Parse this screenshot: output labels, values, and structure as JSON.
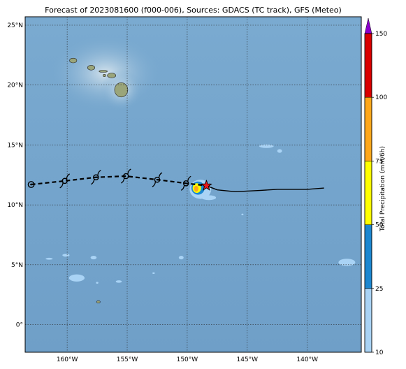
{
  "title": "Forecast of 2023081600 (f000-006), Sources: GDACS (TC track), GFS (Meteo)",
  "map": {
    "lon_range": [
      -163.5,
      -135.5
    ],
    "lat_range": [
      -2.3,
      25.7
    ],
    "lat_ticks": [
      {
        "value": 25,
        "label": "25°N"
      },
      {
        "value": 20,
        "label": "20°N"
      },
      {
        "value": 15,
        "label": "15°N"
      },
      {
        "value": 10,
        "label": "10°N"
      },
      {
        "value": 5,
        "label": "5°N"
      },
      {
        "value": 0,
        "label": "0°"
      }
    ],
    "lon_ticks": [
      {
        "value": -160,
        "label": "160°W"
      },
      {
        "value": -155,
        "label": "155°W"
      },
      {
        "value": -150,
        "label": "150°W"
      },
      {
        "value": -145,
        "label": "145°W"
      },
      {
        "value": -140,
        "label": "140°W"
      }
    ],
    "grid": true,
    "ocean_color": "#77a8cf",
    "land_color": "#9aa57a"
  },
  "track": {
    "past_style": "dashed",
    "forecast_style": "solid",
    "past_points": [
      [
        -163.0,
        11.7
      ],
      [
        -160.2,
        12.0
      ],
      [
        -157.6,
        12.3
      ],
      [
        -155.1,
        12.4
      ],
      [
        -152.5,
        12.1
      ],
      [
        -150.1,
        11.8
      ],
      [
        -148.4,
        11.6
      ]
    ],
    "symbols": [
      {
        "lon": -163.0,
        "lat": 11.7,
        "type": "low-circle"
      },
      {
        "lon": -160.2,
        "lat": 12.0,
        "type": "storm-symbol"
      },
      {
        "lon": -157.6,
        "lat": 12.3,
        "type": "storm-symbol"
      },
      {
        "lon": -155.1,
        "lat": 12.4,
        "type": "storm-symbol"
      },
      {
        "lon": -152.5,
        "lat": 12.1,
        "type": "storm-symbol"
      },
      {
        "lon": -150.1,
        "lat": 11.8,
        "type": "storm-symbol"
      }
    ],
    "current_position": {
      "lon": -148.4,
      "lat": 11.6,
      "marker": "red-star"
    },
    "forecast_points": [
      [
        -148.4,
        11.6
      ],
      [
        -147.5,
        11.25
      ],
      [
        -146.0,
        11.1
      ],
      [
        -144.0,
        11.2
      ],
      [
        -142.5,
        11.3
      ],
      [
        -140.0,
        11.3
      ],
      [
        -138.6,
        11.4
      ]
    ]
  },
  "precip_areas": [
    {
      "lon": -148.9,
      "lat": 11.3,
      "rx": 0.9,
      "ry": 0.8,
      "level": 10
    },
    {
      "lon": -149.1,
      "lat": 11.4,
      "rx": 0.55,
      "ry": 0.55,
      "level": 25
    },
    {
      "lon": -149.2,
      "lat": 11.4,
      "rx": 0.35,
      "ry": 0.4,
      "level": 50
    },
    {
      "lon": -149.25,
      "lat": 11.35,
      "rx": 0.18,
      "ry": 0.25,
      "level": 75
    },
    {
      "lon": -148.2,
      "lat": 10.6,
      "rx": 0.6,
      "ry": 0.2,
      "level": 10
    },
    {
      "lon": -143.4,
      "lat": 14.9,
      "rx": 0.6,
      "ry": 0.15,
      "level": 10
    },
    {
      "lon": -142.3,
      "lat": 14.5,
      "rx": 0.2,
      "ry": 0.15,
      "level": 10
    },
    {
      "lon": -159.2,
      "lat": 3.9,
      "rx": 0.65,
      "ry": 0.3,
      "level": 10
    },
    {
      "lon": -157.8,
      "lat": 5.6,
      "rx": 0.25,
      "ry": 0.15,
      "level": 10
    },
    {
      "lon": -160.1,
      "lat": 5.8,
      "rx": 0.3,
      "ry": 0.12,
      "level": 10
    },
    {
      "lon": -161.5,
      "lat": 5.5,
      "rx": 0.3,
      "ry": 0.08,
      "level": 10
    },
    {
      "lon": -155.7,
      "lat": 3.6,
      "rx": 0.25,
      "ry": 0.1,
      "level": 10
    },
    {
      "lon": -150.5,
      "lat": 5.6,
      "rx": 0.2,
      "ry": 0.15,
      "level": 10
    },
    {
      "lon": -136.7,
      "lat": 5.2,
      "rx": 0.7,
      "ry": 0.3,
      "level": 10
    },
    {
      "lon": -157.5,
      "lat": 3.5,
      "rx": 0.1,
      "ry": 0.08,
      "level": 10
    },
    {
      "lon": -152.8,
      "lat": 4.3,
      "rx": 0.1,
      "ry": 0.05,
      "level": 10
    },
    {
      "lon": -145.4,
      "lat": 9.2,
      "rx": 0.08,
      "ry": 0.06,
      "level": 10
    }
  ],
  "islands": [
    {
      "name": "Niihau-Kauai",
      "lon": -159.5,
      "lat": 22.05,
      "rx": 0.3,
      "ry": 0.2
    },
    {
      "name": "Oahu",
      "lon": -158.0,
      "lat": 21.45,
      "rx": 0.3,
      "ry": 0.2
    },
    {
      "name": "Molokai",
      "lon": -157.0,
      "lat": 21.15,
      "rx": 0.35,
      "ry": 0.08
    },
    {
      "name": "Maui",
      "lon": -156.3,
      "lat": 20.8,
      "rx": 0.35,
      "ry": 0.2
    },
    {
      "name": "Lanai",
      "lon": -156.9,
      "lat": 20.8,
      "rx": 0.12,
      "ry": 0.1
    },
    {
      "name": "Hawaii",
      "lon": -155.5,
      "lat": 19.6,
      "rx": 0.55,
      "ry": 0.6
    },
    {
      "name": "Kiritimati",
      "lon": -157.4,
      "lat": 1.9,
      "rx": 0.15,
      "ry": 0.1
    }
  ],
  "colorbar": {
    "label": "Total Precipitation (mm/6h)",
    "ticks": [
      "10",
      "25",
      "50",
      "75",
      "100",
      "150"
    ],
    "segments": [
      {
        "from": "10",
        "to": "25",
        "color": "#a9d3f5"
      },
      {
        "from": "25",
        "to": "50",
        "color": "#1c87d0"
      },
      {
        "from": "50",
        "to": "75",
        "color": "#ffff00"
      },
      {
        "from": "75",
        "to": "100",
        "color": "#ffa71a"
      },
      {
        "from": "100",
        "to": "150",
        "color": "#d90000"
      }
    ],
    "extend_color": "#8a00cc"
  }
}
